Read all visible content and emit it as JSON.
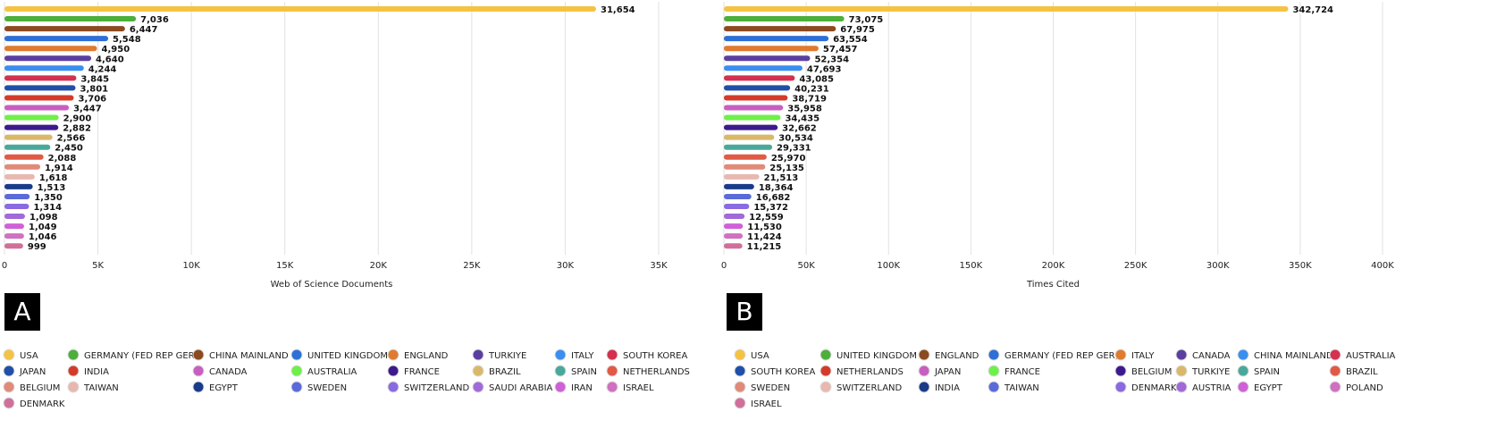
{
  "chart_data": [
    {
      "type": "bar",
      "panel": "A",
      "x_label": "Web of Science Documents",
      "categories": [
        "USA",
        "GERMANY (FED REP GER)",
        "CHINA MAINLAND",
        "UNITED KINGDOM",
        "ENGLAND",
        "TURKIYE",
        "ITALY",
        "SOUTH KOREA",
        "JAPAN",
        "INDIA",
        "CANADA",
        "AUSTRALIA",
        "FRANCE",
        "BRAZIL",
        "SPAIN",
        "NETHERLANDS",
        "BELGIUM",
        "TAIWAN",
        "EGYPT",
        "SWEDEN",
        "SWITZERLAND",
        "SAUDI ARABIA",
        "IRAN",
        "ISRAEL",
        "DENMARK"
      ],
      "values": [
        31654,
        7036,
        6447,
        5548,
        4950,
        4640,
        4244,
        3845,
        3801,
        3706,
        3447,
        2900,
        2882,
        2566,
        2450,
        2088,
        1914,
        1618,
        1513,
        1350,
        1314,
        1098,
        1049,
        1046,
        999
      ],
      "value_labels": [
        "31,654",
        "7,036",
        "6,447",
        "5,548",
        "4,950",
        "4,640",
        "4,244",
        "3,845",
        "3,801",
        "3,706",
        "3,447",
        "2,900",
        "2,882",
        "2,566",
        "2,450",
        "2,088",
        "1,914",
        "1,618",
        "1,513",
        "1,350",
        "1,314",
        "1,098",
        "1,049",
        "1,046",
        "999"
      ],
      "colors": [
        "#f5c343",
        "#4caf3a",
        "#8b4a1f",
        "#2e6fd6",
        "#e07a2e",
        "#5b3fa0",
        "#3a8ef0",
        "#d4304f",
        "#1f4fa8",
        "#d43a2a",
        "#c85fc0",
        "#6ef04a",
        "#3d1a8c",
        "#d9b86a",
        "#4aa89a",
        "#e05a45",
        "#e08a7a",
        "#e8b8b0",
        "#1a3a8a",
        "#5a6ad8",
        "#8a6ae0",
        "#a06ad8",
        "#d060d8",
        "#d070c0",
        "#d0709a"
      ],
      "xlim": [
        0,
        35000
      ],
      "xticks": [
        0,
        {
          "value": 5000,
          "label": "5K"
        },
        {
          "value": 10000,
          "label": "10K"
        },
        {
          "value": 15000,
          "label": "15K"
        },
        {
          "value": 20000,
          "label": "20K"
        },
        {
          "value": 25000,
          "label": "25K"
        },
        {
          "value": 30000,
          "label": "30K"
        },
        {
          "value": 35000,
          "label": "35K"
        }
      ],
      "grid": true
    },
    {
      "type": "bar",
      "panel": "B",
      "x_label": "Times Cited",
      "categories": [
        "USA",
        "UNITED KINGDOM",
        "ENGLAND",
        "GERMANY (FED REP GER)",
        "ITALY",
        "CANADA",
        "CHINA MAINLAND",
        "AUSTRALIA",
        "SOUTH KOREA",
        "NETHERLANDS",
        "JAPAN",
        "FRANCE",
        "BELGIUM",
        "TURKIYE",
        "SPAIN",
        "BRAZIL",
        "SWEDEN",
        "SWITZERLAND",
        "INDIA",
        "TAIWAN",
        "DENMARK",
        "AUSTRIA",
        "EGYPT",
        "POLAND",
        "ISRAEL"
      ],
      "values": [
        342724,
        73075,
        67975,
        63554,
        57457,
        52354,
        47693,
        43085,
        40231,
        38719,
        35958,
        34435,
        32662,
        30534,
        29331,
        25970,
        25135,
        21513,
        18364,
        16682,
        15372,
        12559,
        11530,
        11424,
        11215
      ],
      "value_labels": [
        "342,724",
        "73,075",
        "67,975",
        "63,554",
        "57,457",
        "52,354",
        "47,693",
        "43,085",
        "40,231",
        "38,719",
        "35,958",
        "34,435",
        "32,662",
        "30,534",
        "29,331",
        "25,970",
        "25,135",
        "21,513",
        "18,364",
        "16,682",
        "15,372",
        "12,559",
        "11,530",
        "11,424",
        "11,215"
      ],
      "colors": [
        "#f5c343",
        "#4caf3a",
        "#8b4a1f",
        "#2e6fd6",
        "#e07a2e",
        "#5b3fa0",
        "#3a8ef0",
        "#d4304f",
        "#1f4fa8",
        "#d43a2a",
        "#c85fc0",
        "#6ef04a",
        "#3d1a8c",
        "#d9b86a",
        "#4aa89a",
        "#e05a45",
        "#e08a7a",
        "#e8b8b0",
        "#1a3a8a",
        "#5a6ad8",
        "#8a6ae0",
        "#a06ad8",
        "#d060d8",
        "#d070c0",
        "#d0709a"
      ],
      "xlim": [
        0,
        400000
      ],
      "xticks": [
        0,
        {
          "value": 50000,
          "label": "50K"
        },
        {
          "value": 100000,
          "label": "100K"
        },
        {
          "value": 150000,
          "label": "150K"
        },
        {
          "value": 200000,
          "label": "200K"
        },
        {
          "value": 250000,
          "label": "250K"
        },
        {
          "value": 300000,
          "label": "300K"
        },
        {
          "value": 350000,
          "label": "350K"
        },
        {
          "value": 400000,
          "label": "400K"
        }
      ],
      "grid": true
    }
  ]
}
